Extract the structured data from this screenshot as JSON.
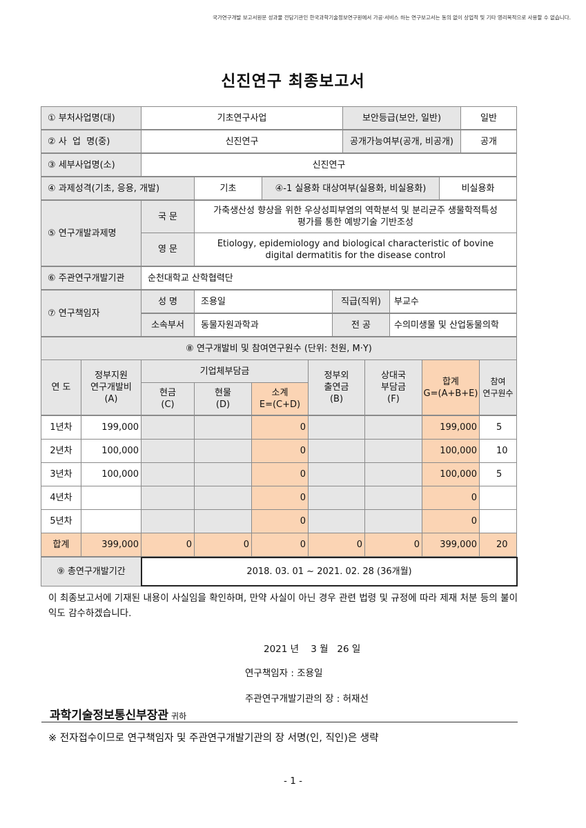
{
  "notice": "국가연구개발 보고서원문 성과물 전담기관인 한국과학기술정보연구원에서 가공·서비스 하는 연구보고서는 동의 없이 상업적 및 기타 영리목적으로 사용할 수 없습니다.",
  "title": "신진연구 최종보고서",
  "info": {
    "r1_label": "① 부처사업명(대)",
    "r1_value": "기초연구사업",
    "r1_label2": "보안등급(보안, 일반)",
    "r1_value2": "일반",
    "r2_label": "② 사  업  명(중)",
    "r2_value": "신진연구",
    "r2_label2": "공개가능여부(공개, 비공개)",
    "r2_value2": "공개",
    "r3_label": "③ 세부사업명(소)",
    "r3_value": "신진연구",
    "r4_label": "④ 과제성격(기초, 응용, 개발)",
    "r4_value": "기초",
    "r4_label2": "④-1 실용화 대상여부(실용화, 비실용화)",
    "r4_value2": "비실용화",
    "r5_label": "⑤ 연구개발과제명",
    "r5_kor_label": "국 문",
    "r5_kor": "가축생산성 향상을 위한 우상성피부염의 역학분석 및 분리균주 생물학적특성 평가를 통한 예방기술 기반조성",
    "r5_eng_label": "영 문",
    "r5_eng": "Etiology, epidemiology and biological characteristic of bovine digital dermatitis for the disease control",
    "r6_label": "⑥ 주관연구개발기관",
    "r6_value": "순천대학교 산학협력단",
    "r7_label": "⑦ 연구책임자",
    "name_label": "성 명",
    "name": "조용일",
    "rank_label": "직급(직위)",
    "rank": "부교수",
    "dept_label": "소속부서",
    "dept": "동물자원과학과",
    "major_label": "전 공",
    "major": "수의미생물 및 산업동물의학"
  },
  "finance": {
    "title": "⑧ 연구개발비 및 참여연구원수 (단위: 천원, M·Y)",
    "headers": {
      "year": "연 도",
      "gov": "정부지원\n연구개발비\n(A)",
      "corp": "기업체부담금",
      "cash": "현금\n(C)",
      "kind": "현물\n(D)",
      "sub": "소계\nE=(C+D)",
      "nongov": "정부외\n출연금\n(B)",
      "partner": "상대국\n부담금\n(F)",
      "total": "합계\nG=(A+B+E)",
      "people": "참여\n연구원수"
    },
    "rows": [
      {
        "year": "1년차",
        "gov": "199,000",
        "cash": "",
        "kind": "",
        "sub": "0",
        "nongov": "",
        "partner": "",
        "total": "199,000",
        "people": "5"
      },
      {
        "year": "2년차",
        "gov": "100,000",
        "cash": "",
        "kind": "",
        "sub": "0",
        "nongov": "",
        "partner": "",
        "total": "100,000",
        "people": "10"
      },
      {
        "year": "3년차",
        "gov": "100,000",
        "cash": "",
        "kind": "",
        "sub": "0",
        "nongov": "",
        "partner": "",
        "total": "100,000",
        "people": "5"
      },
      {
        "year": "4년차",
        "gov": "",
        "cash": "",
        "kind": "",
        "sub": "0",
        "nongov": "",
        "partner": "",
        "total": "0",
        "people": ""
      },
      {
        "year": "5년차",
        "gov": "",
        "cash": "",
        "kind": "",
        "sub": "0",
        "nongov": "",
        "partner": "",
        "total": "0",
        "people": ""
      },
      {
        "year": "합계",
        "gov": "399,000",
        "cash": "0",
        "kind": "0",
        "sub": "0",
        "nongov": "0",
        "partner": "0",
        "total": "399,000",
        "people": "20"
      }
    ]
  },
  "period": {
    "label": "⑨ 총연구개발기간",
    "value": "2018. 03. 01 ~ 2021. 02. 28 (36개월)"
  },
  "statement": "이 최종보고서에 기재된 내용이 사실임을 확인하며, 만약 사실이 아닌 경우 관련 법령 및 규정에 따라 제재 처분 등의 불이익도 감수하겠습니다.",
  "date": "2021 년    3 월   26 일",
  "researcher": "연구책임자 : 조용일",
  "head": "주관연구개발기관의 장 : 허재선",
  "ministry": "과학기술정보통신부장관",
  "ministry_suffix": "귀하",
  "footnote": "※ 전자접수이므로 연구책임자 및 주관연구개발기관의 장 서명(인, 직인)은 생략",
  "page_number": "- 1 -"
}
